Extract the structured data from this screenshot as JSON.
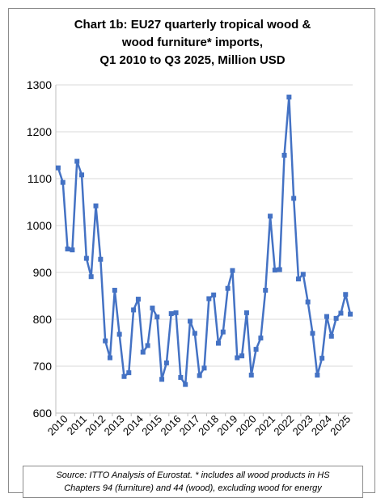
{
  "chart_data": {
    "type": "line",
    "title_lines": [
      "Chart 1b: EU27 quarterly tropical wood &",
      "wood furniture* imports,",
      "Q1 2010 to Q3 2025, Million USD"
    ],
    "source_lines": [
      "Source: ITTO Analysis of Eurostat. * includes all wood products in HS",
      "Chapters 94 (furniture) and 44 (wood), excluding wood for energy"
    ],
    "ylim": [
      600,
      1300
    ],
    "yticks": [
      600,
      700,
      800,
      900,
      1000,
      1100,
      1200,
      1300
    ],
    "x_tick_labels": [
      "2010",
      "2011",
      "2012",
      "2013",
      "2014",
      "2015",
      "2016",
      "2017",
      "2018",
      "2019",
      "2020",
      "2021",
      "2022",
      "2023",
      "2024",
      "2025"
    ],
    "grid": true,
    "line_color": "#4472c4",
    "series": [
      {
        "values": [
          1123,
          1092,
          950,
          948,
          1137,
          1108,
          930,
          891,
          1042,
          928,
          754,
          718,
          862,
          768,
          678,
          686,
          820,
          843,
          730,
          744,
          824,
          805,
          672,
          707,
          812,
          814,
          676,
          661,
          796,
          770,
          680,
          696,
          844,
          852,
          749,
          773,
          866,
          904,
          718,
          722,
          814,
          681,
          736,
          760,
          862,
          1020,
          905,
          906,
          1150,
          1274,
          1058,
          886,
          896,
          837,
          770,
          681,
          717,
          806,
          764,
          802,
          813,
          853,
          811
        ]
      }
    ]
  }
}
